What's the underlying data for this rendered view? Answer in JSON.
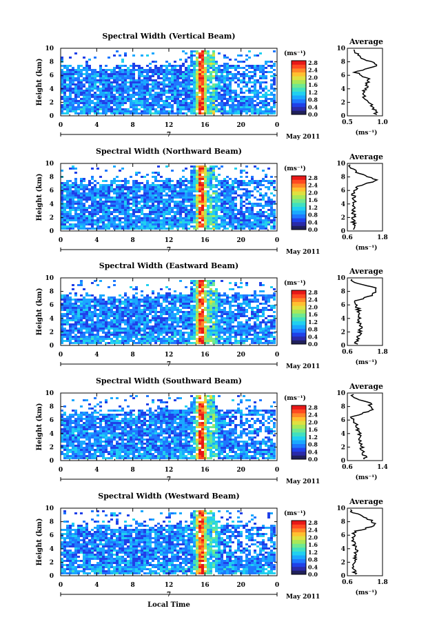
{
  "figure": {
    "xlabel_bottom": "Local Time",
    "date_label": "May 2011",
    "date_day": "7",
    "colorbar_unit": "(ms⁻¹)",
    "colorbar_ticks": [
      "2.8",
      "2.4",
      "2.0",
      "1.6",
      "1.2",
      "0.8",
      "0.4",
      "0.0"
    ],
    "avg_title": "Average",
    "avg_xlabel": "(ms⁻¹)",
    "ylabel": "Height (km)",
    "colors": {
      "scale": [
        "#20205a",
        "#2a2aa8",
        "#2040e8",
        "#1e78ff",
        "#1aa8ff",
        "#20d0f0",
        "#40e0c0",
        "#70e890",
        "#a8e858",
        "#e0e040",
        "#ffc030",
        "#ff8828",
        "#ff4a20",
        "#e81818"
      ]
    }
  },
  "chart_data": [
    {
      "type": "heatmap",
      "title": "Spectral Width (Vertical Beam)",
      "xlabel": "Local Time",
      "ylabel": "Height (km)",
      "x_ticks": [
        "0",
        "4",
        "8",
        "12",
        "16",
        "20",
        "0"
      ],
      "y_ticks": [
        "0",
        "2",
        "4",
        "6",
        "8",
        "10"
      ],
      "xlim": [
        0,
        24
      ],
      "ylim": [
        0,
        10
      ],
      "colorbar_range": [
        0.0,
        3.0
      ],
      "average_profile": {
        "xlim": [
          0.5,
          1.0
        ],
        "x_ticks": [
          "0.5",
          "1.0"
        ],
        "height_km": [
          0.5,
          1.5,
          2.5,
          3.5,
          4.5,
          5.5,
          6.5,
          7.5,
          8.5,
          9.5
        ],
        "width_ms": [
          0.9,
          0.85,
          0.75,
          0.72,
          0.78,
          0.8,
          0.6,
          0.95,
          0.7,
          0.6
        ]
      }
    },
    {
      "type": "heatmap",
      "title": "Spectral Width (Northward Beam)",
      "xlabel": "Local Time",
      "ylabel": "Height (km)",
      "x_ticks": [
        "0",
        "4",
        "8",
        "12",
        "16",
        "20",
        "0"
      ],
      "y_ticks": [
        "0",
        "2",
        "4",
        "6",
        "8",
        "10"
      ],
      "xlim": [
        0,
        24
      ],
      "ylim": [
        0,
        10
      ],
      "colorbar_range": [
        0.0,
        3.0
      ],
      "average_profile": {
        "xlim": [
          0.6,
          1.8
        ],
        "x_ticks": [
          "0.6",
          "1.8"
        ],
        "height_km": [
          0.5,
          1.5,
          2.5,
          3.5,
          4.5,
          5.5,
          6.5,
          7.5,
          8.5,
          9.5
        ],
        "width_ms": [
          0.85,
          0.8,
          0.82,
          0.8,
          0.85,
          0.8,
          0.9,
          1.6,
          1.0,
          0.7
        ]
      }
    },
    {
      "type": "heatmap",
      "title": "Spectral Width (Eastward Beam)",
      "xlabel": "Local Time",
      "ylabel": "Height (km)",
      "x_ticks": [
        "0",
        "4",
        "8",
        "12",
        "16",
        "20",
        "0"
      ],
      "y_ticks": [
        "0",
        "2",
        "4",
        "6",
        "8",
        "10"
      ],
      "xlim": [
        0,
        24
      ],
      "ylim": [
        0,
        10
      ],
      "colorbar_range": [
        0.0,
        3.0
      ],
      "average_profile": {
        "xlim": [
          0.6,
          1.8
        ],
        "x_ticks": [
          "0.6",
          "1.8"
        ],
        "height_km": [
          0.5,
          1.5,
          2.5,
          3.5,
          4.5,
          5.5,
          6.5,
          7.5,
          8.5,
          9.5
        ],
        "width_ms": [
          0.9,
          1.0,
          1.05,
          1.0,
          1.05,
          0.95,
          0.85,
          1.5,
          1.6,
          0.7
        ]
      }
    },
    {
      "type": "heatmap",
      "title": "Spectral Width (Southward Beam)",
      "xlabel": "Local Time",
      "ylabel": "Height (km)",
      "x_ticks": [
        "0",
        "4",
        "8",
        "12",
        "16",
        "20",
        "0"
      ],
      "y_ticks": [
        "0",
        "2",
        "4",
        "6",
        "8",
        "10"
      ],
      "xlim": [
        0,
        24
      ],
      "ylim": [
        0,
        10
      ],
      "colorbar_range": [
        0.0,
        3.0
      ],
      "average_profile": {
        "xlim": [
          0.6,
          1.4
        ],
        "x_ticks": [
          "0.6",
          "1.4"
        ],
        "height_km": [
          0.5,
          1.5,
          2.5,
          3.5,
          4.5,
          5.5,
          6.5,
          7.5,
          8.5,
          9.5
        ],
        "width_ms": [
          1.0,
          0.95,
          0.9,
          0.88,
          0.85,
          0.8,
          0.7,
          1.2,
          1.1,
          0.7
        ]
      }
    },
    {
      "type": "heatmap",
      "title": "Spectral Width (Westward Beam)",
      "xlabel": "Local Time",
      "ylabel": "Height (km)",
      "x_ticks": [
        "0",
        "4",
        "8",
        "12",
        "16",
        "20",
        "0"
      ],
      "y_ticks": [
        "0",
        "2",
        "4",
        "6",
        "8",
        "10"
      ],
      "xlim": [
        0,
        24
      ],
      "ylim": [
        0,
        10
      ],
      "colorbar_range": [
        0.0,
        3.0
      ],
      "average_profile": {
        "xlim": [
          0.6,
          1.8
        ],
        "x_ticks": [
          "0.6",
          "1.8"
        ],
        "height_km": [
          0.5,
          1.5,
          2.5,
          3.5,
          4.5,
          5.5,
          6.5,
          7.5,
          8.5,
          9.5
        ],
        "width_ms": [
          0.85,
          0.8,
          0.85,
          0.9,
          0.85,
          0.8,
          0.85,
          1.6,
          1.3,
          0.7
        ]
      }
    }
  ]
}
